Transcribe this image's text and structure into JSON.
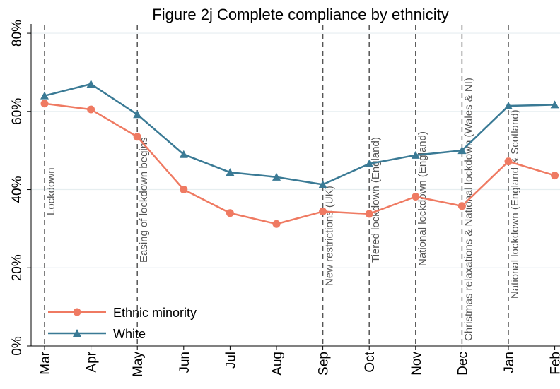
{
  "chart_data": {
    "type": "line",
    "title": "Figure 2j Complete compliance by ethnicity",
    "xlabel": "",
    "ylabel": "",
    "categories": [
      "Mar",
      "Apr",
      "May",
      "Jun",
      "Jul",
      "Aug",
      "Sep",
      "Oct",
      "Nov",
      "Dec",
      "Jan",
      "Feb"
    ],
    "ylim": [
      0,
      0.82
    ],
    "yticks": [
      0,
      0.2,
      0.4,
      0.6,
      0.8
    ],
    "ytick_labels": [
      "0%",
      "20%",
      "40%",
      "60%",
      "80%"
    ],
    "grid": true,
    "series": [
      {
        "name": "Ethnic minority",
        "color": "#ef7a62",
        "marker": "circle",
        "values": [
          0.62,
          0.605,
          0.535,
          0.4,
          0.34,
          0.312,
          0.344,
          0.338,
          0.382,
          0.358,
          0.472,
          0.436
        ]
      },
      {
        "name": "White",
        "color": "#3a7a95",
        "marker": "triangle",
        "values": [
          0.64,
          0.67,
          0.592,
          0.49,
          0.444,
          0.432,
          0.413,
          0.466,
          0.488,
          0.5,
          0.614,
          0.617
        ]
      }
    ],
    "annotations": [
      {
        "x_index": 0,
        "text": "Lockdown"
      },
      {
        "x_index": 2,
        "text": "Easing of lockdown begins"
      },
      {
        "x_index": 6,
        "text": "New restrictions (UK)"
      },
      {
        "x_index": 7,
        "text": "Tiered lockdown (England)"
      },
      {
        "x_index": 8,
        "text": "National lockdown (England)"
      },
      {
        "x_index": 9,
        "text": "Christmas relaxations & National lockdown (Wales & NI)"
      },
      {
        "x_index": 10,
        "text": "National lockdown (England & Scotland)"
      }
    ],
    "legend_position": "bottom-left"
  }
}
